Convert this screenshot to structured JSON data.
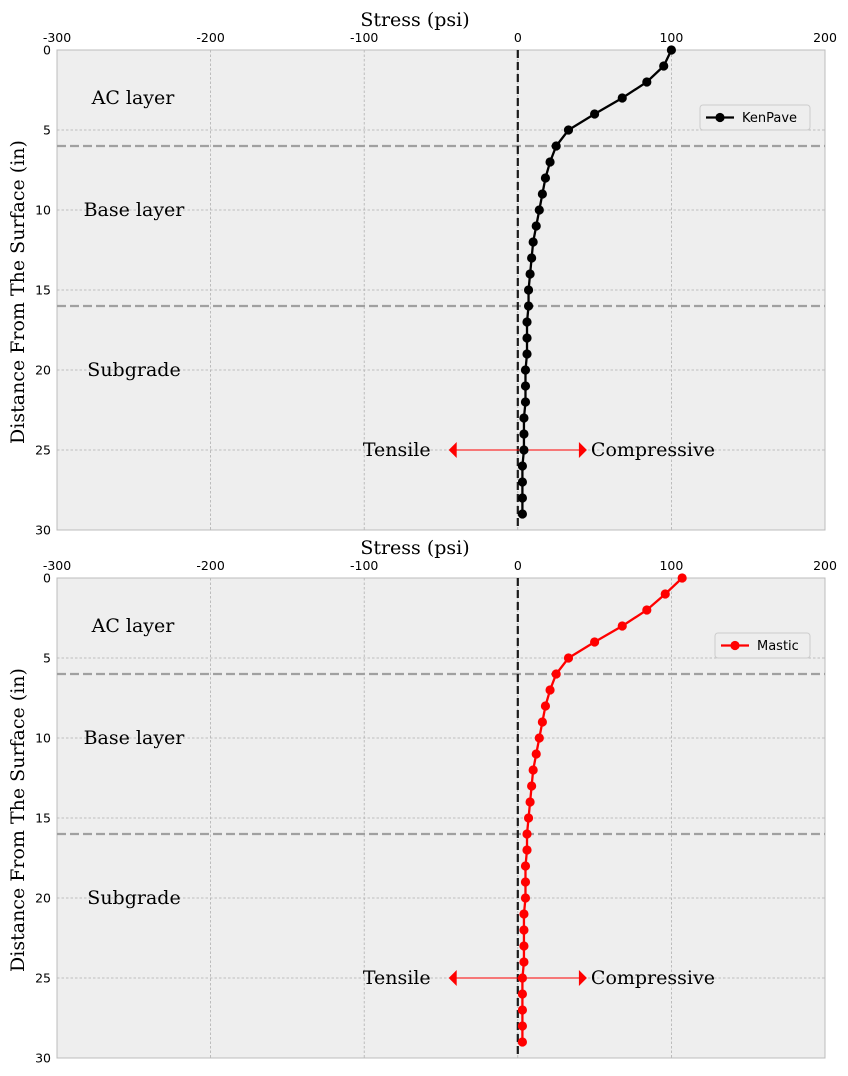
{
  "chart_data": [
    {
      "type": "line",
      "xlabel": "Stress (psi)",
      "ylabel": "Distance From The Surface (in)",
      "xlim": [
        -300,
        200
      ],
      "ylim": [
        30,
        0
      ],
      "y_inverted": true,
      "x_axis_position": "top",
      "grid": true,
      "xticks": [
        -300,
        -200,
        -100,
        0,
        100,
        200
      ],
      "yticks": [
        0,
        5,
        10,
        15,
        20,
        25,
        30
      ],
      "legend_position": "upper-right",
      "series": [
        {
          "name": "KenPave",
          "color": "#000000",
          "x": [
            100,
            95,
            84,
            68,
            50,
            33,
            25,
            21,
            18,
            16,
            14,
            12,
            10,
            9,
            8,
            7,
            7,
            6,
            6,
            6,
            5,
            5,
            5,
            4,
            4,
            4,
            3,
            3,
            3,
            3
          ],
          "y": [
            0,
            1,
            2,
            3,
            4,
            5,
            6,
            7,
            8,
            9,
            10,
            11,
            12,
            13,
            14,
            15,
            16,
            17,
            18,
            19,
            20,
            21,
            22,
            23,
            24,
            25,
            26,
            27,
            28,
            29
          ]
        }
      ],
      "layer_boundaries": [
        6,
        16
      ],
      "zero_line": 0,
      "layer_labels": [
        {
          "text": "AC layer",
          "depth": 3
        },
        {
          "text": "Base layer",
          "depth": 10
        },
        {
          "text": "Subgrade",
          "depth": 20
        }
      ],
      "annotation": {
        "left": "Tensile",
        "right": "Compressive",
        "depth": 25,
        "x_from": -45,
        "x_to": 45,
        "color": "#ff0000"
      }
    },
    {
      "type": "line",
      "xlabel": "Stress (psi)",
      "ylabel": "Distance From The Surface (in)",
      "xlim": [
        -300,
        200
      ],
      "ylim": [
        30,
        0
      ],
      "y_inverted": true,
      "x_axis_position": "top",
      "grid": true,
      "xticks": [
        -300,
        -200,
        -100,
        0,
        100,
        200
      ],
      "yticks": [
        0,
        5,
        10,
        15,
        20,
        25,
        30
      ],
      "legend_position": "upper-right",
      "series": [
        {
          "name": "Mastic",
          "color": "#ff0000",
          "x": [
            107,
            96,
            84,
            68,
            50,
            33,
            25,
            21,
            18,
            16,
            14,
            12,
            10,
            9,
            8,
            7,
            6,
            6,
            5,
            5,
            5,
            4,
            4,
            4,
            4,
            3,
            3,
            3,
            3,
            3
          ],
          "y": [
            0,
            1,
            2,
            3,
            4,
            5,
            6,
            7,
            8,
            9,
            10,
            11,
            12,
            13,
            14,
            15,
            16,
            17,
            18,
            19,
            20,
            21,
            22,
            23,
            24,
            25,
            26,
            27,
            28,
            29
          ]
        }
      ],
      "layer_boundaries": [
        6,
        16
      ],
      "zero_line": 0,
      "layer_labels": [
        {
          "text": "AC layer",
          "depth": 3
        },
        {
          "text": "Base layer",
          "depth": 10
        },
        {
          "text": "Subgrade",
          "depth": 20
        }
      ],
      "annotation": {
        "left": "Tensile",
        "right": "Compressive",
        "depth": 25,
        "x_from": -45,
        "x_to": 45,
        "color": "#ff0000"
      }
    }
  ]
}
